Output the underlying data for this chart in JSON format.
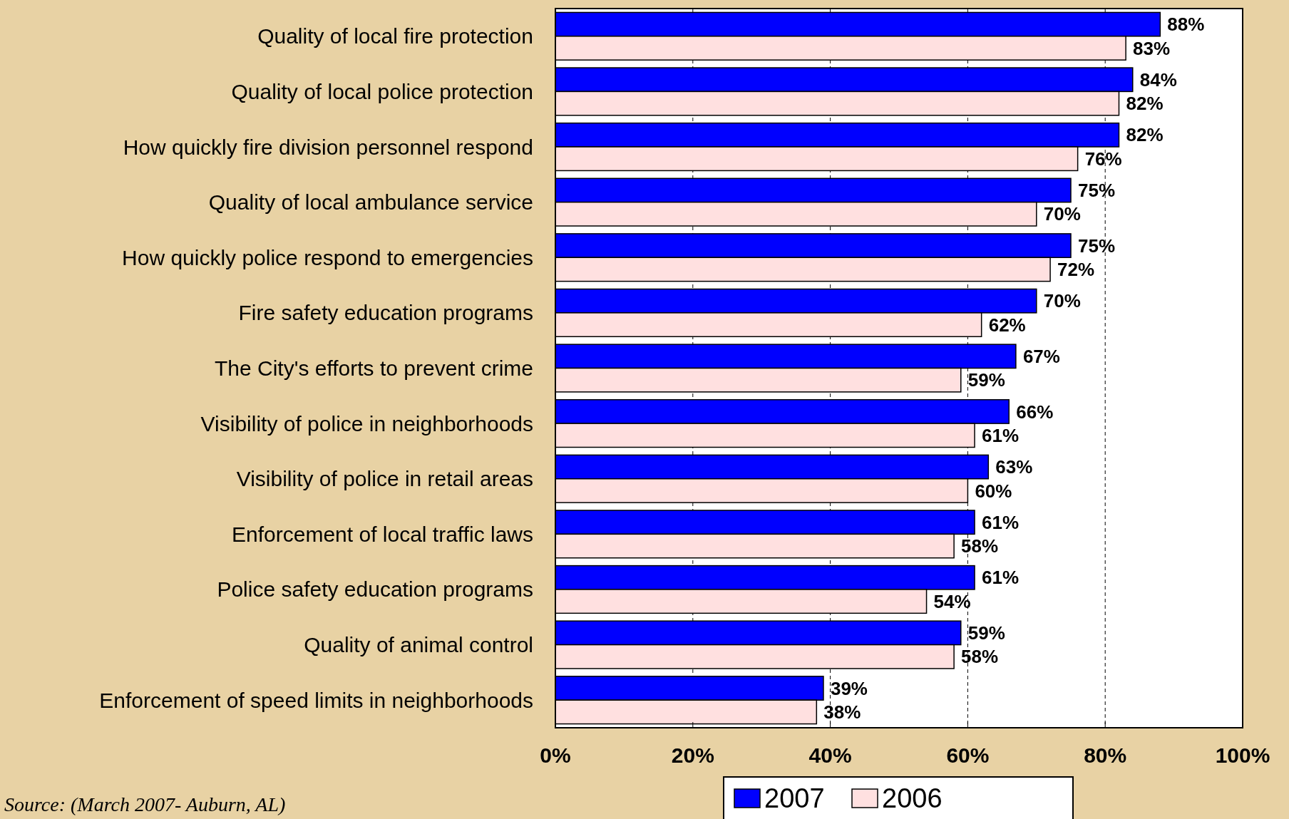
{
  "chart_data": {
    "type": "bar",
    "orientation": "horizontal",
    "categories": [
      "Quality of local fire protection",
      "Quality of local police protection",
      "How quickly fire division personnel respond",
      "Quality of local ambulance service",
      "How quickly police respond to emergencies",
      "Fire safety education programs",
      "The City's efforts to prevent crime",
      "Visibility of police in neighborhoods",
      "Visibility of police in retail areas",
      "Enforcement of local traffic laws",
      "Police safety education programs",
      "Quality of animal control",
      "Enforcement of speed limits in neighborhoods"
    ],
    "series": [
      {
        "name": "2007",
        "color": "#0000ff",
        "values": [
          88,
          84,
          82,
          75,
          75,
          70,
          67,
          66,
          63,
          61,
          61,
          59,
          39
        ],
        "value_labels": [
          "88%",
          "84%",
          "82%",
          "75%",
          "75%",
          "70%",
          "67%",
          "66%",
          "63%",
          "61%",
          "61%",
          "59%",
          "39%"
        ]
      },
      {
        "name": "2006",
        "color": "#ffe0e0",
        "values": [
          83,
          82,
          76,
          70,
          72,
          62,
          59,
          61,
          60,
          58,
          54,
          58,
          38
        ],
        "value_labels": [
          "83%",
          "82%",
          "76%",
          "70%",
          "72%",
          "62%",
          "59%",
          "61%",
          "60%",
          "58%",
          "54%",
          "58%",
          "38%"
        ]
      }
    ],
    "xlim": [
      0,
      100
    ],
    "xticks": [
      {
        "value": 0,
        "label": "0%"
      },
      {
        "value": 20,
        "label": "20%"
      },
      {
        "value": 40,
        "label": "40%"
      },
      {
        "value": 60,
        "label": "60%"
      },
      {
        "value": 80,
        "label": "80%"
      },
      {
        "value": 100,
        "label": "100%"
      }
    ],
    "grid": "x",
    "legend": "bottom",
    "annotations": [
      "Source: (March 2007- Auburn, AL)"
    ]
  }
}
